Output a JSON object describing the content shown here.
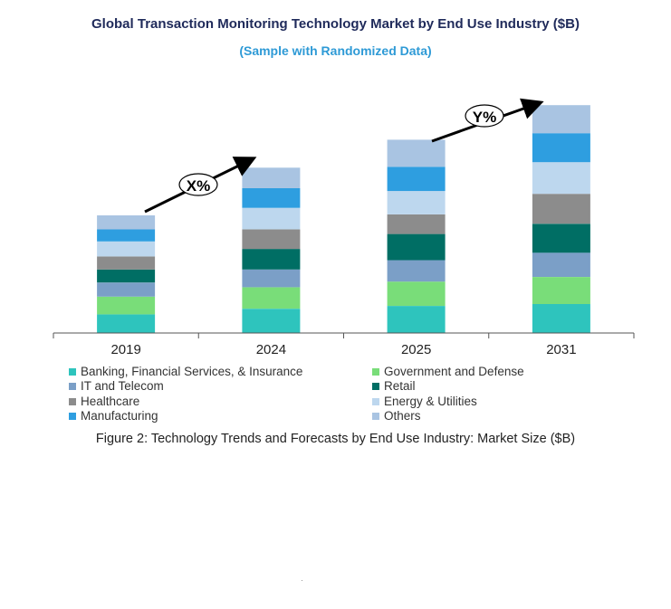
{
  "title": "Global Transaction Monitoring Technology Market by End Use Industry ($B)",
  "subtitle": "(Sample with Randomized Data)",
  "caption": "Figure 2: Technology Trends and Forecasts by End Use Industry:  Market Size ($B)",
  "annotations": [
    "X%",
    "Y%"
  ],
  "chart_data": {
    "type": "bar",
    "stacked": true,
    "title": "Global Transaction Monitoring Technology Market by End Use Industry ($B)",
    "xlabel": "",
    "ylabel": "",
    "categories": [
      "2019",
      "2024",
      "2025",
      "2031"
    ],
    "series": [
      {
        "name": "Banking, Financial Services, & Insurance",
        "color": "#2ec4bd",
        "values": [
          20,
          26,
          29,
          31
        ]
      },
      {
        "name": "Government and Defense",
        "color": "#79dd79",
        "values": [
          19,
          23,
          26,
          29
        ]
      },
      {
        "name": "IT and Telecom",
        "color": "#7b9fc7",
        "values": [
          15,
          19,
          23,
          26
        ]
      },
      {
        "name": "Retail",
        "color": "#006e64",
        "values": [
          14,
          22,
          28,
          31
        ]
      },
      {
        "name": "Healthcare",
        "color": "#8c8c8c",
        "values": [
          14,
          21,
          21,
          32
        ]
      },
      {
        "name": "Energy & Utilities",
        "color": "#bdd7ee",
        "values": [
          16,
          23,
          25,
          34
        ]
      },
      {
        "name": "Manufacturing",
        "color": "#2e9ee0",
        "values": [
          13,
          21,
          26,
          31
        ]
      },
      {
        "name": "Others",
        "color": "#a9c4e2",
        "values": [
          15,
          22,
          29,
          30
        ]
      }
    ],
    "ylim": [
      0,
      250
    ],
    "grid": false,
    "legend_position": "bottom"
  }
}
